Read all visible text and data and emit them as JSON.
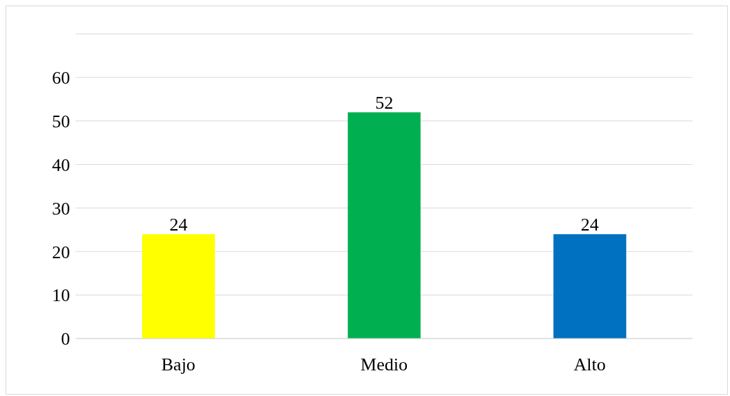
{
  "chart_data": {
    "type": "bar",
    "categories": [
      "Bajo",
      "Medio",
      "Alto"
    ],
    "values": [
      24,
      52,
      24
    ],
    "colors": [
      "#ffff00",
      "#00b050",
      "#0070c0"
    ],
    "ylim": [
      0,
      70
    ],
    "yticks": [
      0,
      10,
      20,
      30,
      40,
      50,
      60,
      {
        "value": 70,
        "label": null
      }
    ],
    "grid": "y",
    "data_labels": true
  }
}
